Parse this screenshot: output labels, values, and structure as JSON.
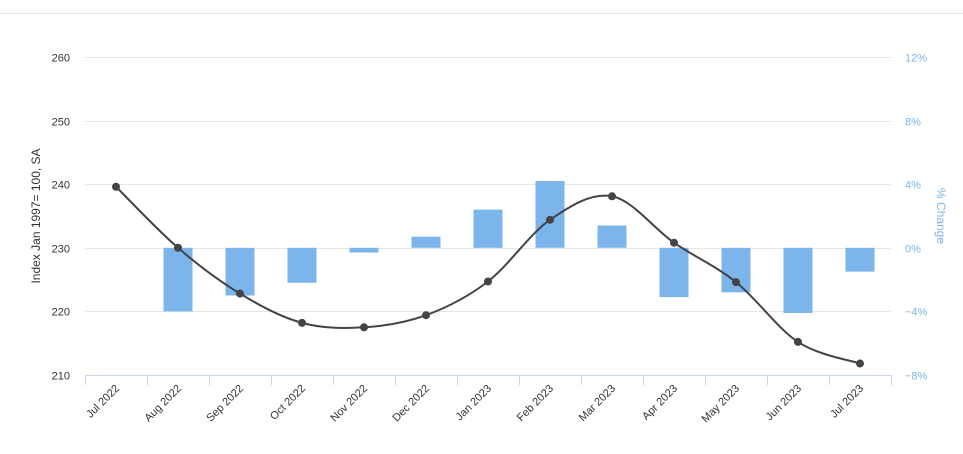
{
  "chart_data": {
    "type": "line+bar",
    "categories": [
      "Jul 2022",
      "Aug 2022",
      "Sep 2022",
      "Oct 2022",
      "Nov 2022",
      "Dec 2022",
      "Jan 2023",
      "Feb 2023",
      "Mar 2023",
      "Apr 2023",
      "May 2023",
      "Jun 2023",
      "Jul 2023"
    ],
    "series": [
      {
        "type": "line",
        "axis": "left",
        "color": "#434348",
        "values": [
          239.6,
          230.0,
          222.8,
          218.2,
          217.5,
          219.4,
          224.7,
          234.4,
          238.1,
          230.8,
          224.6,
          215.2,
          211.8
        ]
      },
      {
        "type": "bar",
        "axis": "right",
        "color": "#7cb5ec",
        "values": [
          null,
          -4.0,
          -3.0,
          -2.2,
          -0.3,
          0.7,
          2.4,
          4.2,
          1.4,
          -3.1,
          -2.8,
          -4.1,
          -1.5
        ]
      }
    ],
    "yleft": {
      "label": "Index Jan 1997= 100, SA",
      "ticks": [
        "210",
        "220",
        "230",
        "240",
        "250",
        "260"
      ],
      "lim": [
        210,
        260
      ]
    },
    "yright": {
      "label": "% Change",
      "ticks": [
        "−8%",
        "−4%",
        "0%",
        "4%",
        "8%",
        "12%"
      ],
      "lim": [
        -8,
        12
      ]
    },
    "grid": true
  }
}
